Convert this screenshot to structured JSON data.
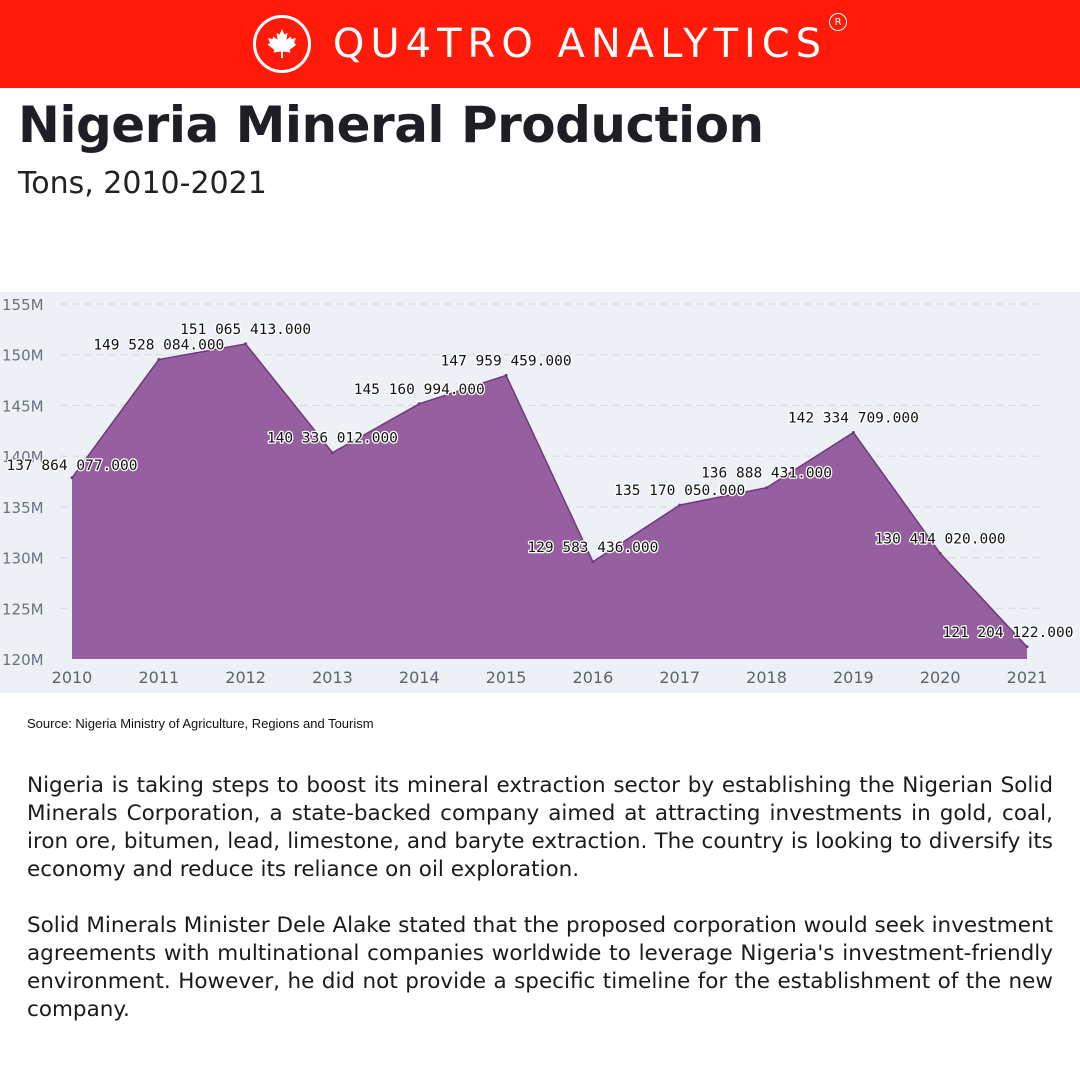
{
  "brand": {
    "name": "QU4TRO ANALYTICS",
    "registered_mark": "R",
    "logo_icon": "maple-leaf-icon",
    "background_color": "#ff1a0a"
  },
  "title": "Nigeria Mineral Production",
  "subtitle": "Tons, 2010-2021",
  "chart_data": {
    "type": "area",
    "categories": [
      "2010",
      "2011",
      "2012",
      "2013",
      "2014",
      "2015",
      "2016",
      "2017",
      "2018",
      "2019",
      "2020",
      "2021"
    ],
    "series": [
      {
        "values": [
          137864077,
          149528084,
          151065413,
          140336012,
          145160994,
          147959459,
          129583436,
          135170050,
          136888431,
          142334709,
          130414020,
          121204122
        ]
      }
    ],
    "data_labels": [
      "137 864 077.000",
      "149 528 084.000",
      "151 065 413.000",
      "140 336 012.000",
      "145 160 994.000",
      "147 959 459.000",
      "129 583 436.000",
      "135 170 050.000",
      "136 888 431.000",
      "142 334 709.000",
      "130 414 020.000",
      "121 204 122.000"
    ],
    "ylim": [
      120000000,
      155000000
    ],
    "yticks": [
      120000000,
      125000000,
      130000000,
      135000000,
      140000000,
      145000000,
      150000000,
      155000000
    ],
    "ytick_labels": [
      "120M",
      "125M",
      "130M",
      "135M",
      "140M",
      "145M",
      "150M",
      "155M"
    ],
    "grid": true,
    "fill_color": "#8e5397",
    "background_color": "#edf1f6"
  },
  "source": "Source: Nigeria Ministry of Agriculture, Regions and Tourism",
  "paragraphs": [
    "Nigeria is taking steps to boost its mineral extraction sector by establishing the Nigerian Solid Minerals Corporation, a state-backed company aimed at attracting investments in gold, coal, iron ore, bitumen, lead, limestone, and baryte extraction. The country is looking to diversify its economy and reduce its reliance on oil exploration.",
    "Solid Minerals Minister Dele Alake stated that the proposed corporation would seek investment agreements with multinational companies worldwide to leverage Nigeria's investment-friendly environment. However, he did not provide a specific timeline for the establishment of the new company."
  ]
}
